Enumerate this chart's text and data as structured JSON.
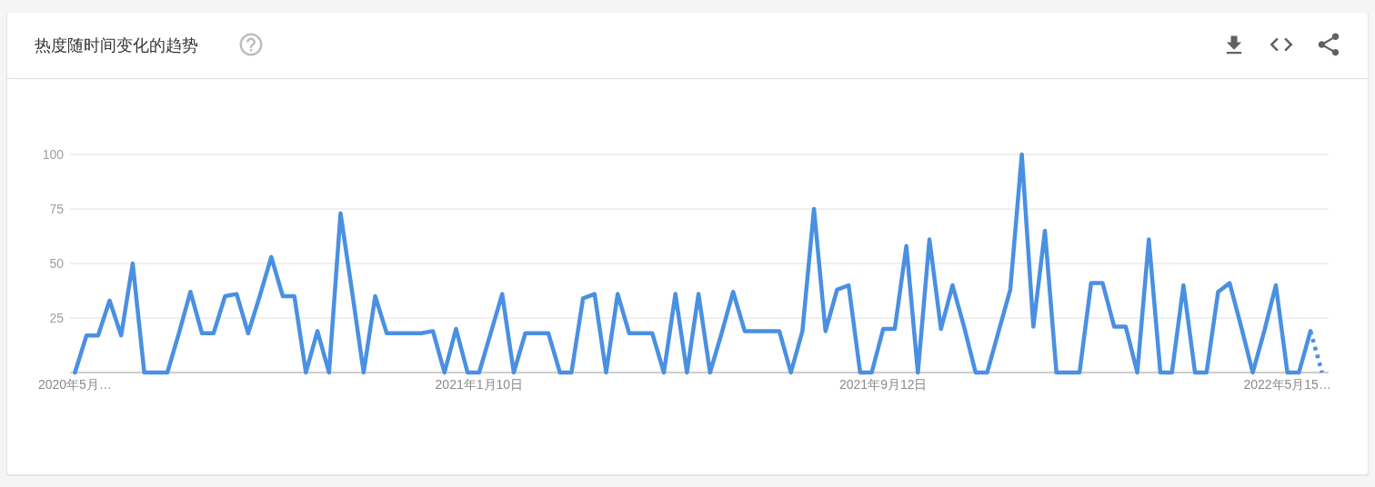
{
  "chart_data": {
    "type": "line",
    "title": "热度随时间变化的趋势",
    "x": [
      "2020-05-10",
      "2020-05-17",
      "2020-05-24",
      "2020-05-31",
      "2020-06-07",
      "2020-06-14",
      "2020-06-21",
      "2020-06-28",
      "2020-07-05",
      "2020-07-12",
      "2020-07-19",
      "2020-07-26",
      "2020-08-02",
      "2020-08-09",
      "2020-08-16",
      "2020-08-23",
      "2020-08-30",
      "2020-09-06",
      "2020-09-13",
      "2020-09-20",
      "2020-09-27",
      "2020-10-04",
      "2020-10-11",
      "2020-10-18",
      "2020-10-25",
      "2020-11-01",
      "2020-11-08",
      "2020-11-15",
      "2020-11-22",
      "2020-11-29",
      "2020-12-06",
      "2020-12-13",
      "2020-12-20",
      "2020-12-27",
      "2021-01-03",
      "2021-01-10",
      "2021-01-17",
      "2021-01-24",
      "2021-01-31",
      "2021-02-07",
      "2021-02-14",
      "2021-02-21",
      "2021-02-28",
      "2021-03-07",
      "2021-03-14",
      "2021-03-21",
      "2021-03-28",
      "2021-04-04",
      "2021-04-11",
      "2021-04-18",
      "2021-04-25",
      "2021-05-02",
      "2021-05-09",
      "2021-05-16",
      "2021-05-23",
      "2021-05-30",
      "2021-06-06",
      "2021-06-13",
      "2021-06-20",
      "2021-06-27",
      "2021-07-04",
      "2021-07-11",
      "2021-07-18",
      "2021-07-25",
      "2021-08-01",
      "2021-08-08",
      "2021-08-15",
      "2021-08-22",
      "2021-08-29",
      "2021-09-05",
      "2021-09-12",
      "2021-09-19",
      "2021-09-26",
      "2021-10-03",
      "2021-10-10",
      "2021-10-17",
      "2021-10-24",
      "2021-10-31",
      "2021-11-07",
      "2021-11-14",
      "2021-11-21",
      "2021-11-28",
      "2021-12-05",
      "2021-12-12",
      "2021-12-19",
      "2021-12-26",
      "2022-01-02",
      "2022-01-09",
      "2022-01-16",
      "2022-01-23",
      "2022-01-30",
      "2022-02-06",
      "2022-02-13",
      "2022-02-20",
      "2022-02-27",
      "2022-03-06",
      "2022-03-13",
      "2022-03-20",
      "2022-03-27",
      "2022-04-03",
      "2022-04-10",
      "2022-04-17",
      "2022-04-24",
      "2022-05-01",
      "2022-05-08",
      "2022-05-15",
      "2022-05-22",
      "2022-05-29",
      "2022-06-05"
    ],
    "series": [
      {
        "color": "#4a90e2",
        "line_style": "solid",
        "values": [
          0,
          17,
          17,
          33,
          17,
          50,
          0,
          0,
          0,
          18,
          37,
          18,
          18,
          35,
          36,
          18,
          35,
          53,
          35,
          35,
          0,
          19,
          0,
          73,
          37,
          0,
          35,
          18,
          18,
          18,
          18,
          19,
          0,
          20,
          0,
          0,
          18,
          36,
          0,
          18,
          18,
          18,
          0,
          0,
          34,
          36,
          0,
          36,
          18,
          18,
          18,
          0,
          36,
          0,
          36,
          0,
          18,
          37,
          19,
          19,
          19,
          19,
          0,
          19,
          75,
          19,
          38,
          40,
          0,
          0,
          20,
          20,
          58,
          0,
          61,
          20,
          40,
          21,
          0,
          0,
          19,
          38,
          100,
          21,
          65,
          0,
          0,
          0,
          41,
          41,
          21,
          21,
          0,
          61,
          0,
          0,
          40,
          0,
          0,
          37,
          41,
          21,
          0,
          19,
          40,
          0,
          0,
          19,
          null
        ]
      },
      {
        "color": "#4a90e2",
        "line_style": "dotted",
        "values": [
          null,
          null,
          null,
          null,
          null,
          null,
          null,
          null,
          null,
          null,
          null,
          null,
          null,
          null,
          null,
          null,
          null,
          null,
          null,
          null,
          null,
          null,
          null,
          null,
          null,
          null,
          null,
          null,
          null,
          null,
          null,
          null,
          null,
          null,
          null,
          null,
          null,
          null,
          null,
          null,
          null,
          null,
          null,
          null,
          null,
          null,
          null,
          null,
          null,
          null,
          null,
          null,
          null,
          null,
          null,
          null,
          null,
          null,
          null,
          null,
          null,
          null,
          null,
          null,
          null,
          null,
          null,
          null,
          null,
          null,
          null,
          null,
          null,
          null,
          null,
          null,
          null,
          null,
          null,
          null,
          null,
          null,
          null,
          null,
          null,
          null,
          null,
          null,
          null,
          null,
          null,
          null,
          null,
          null,
          null,
          null,
          null,
          null,
          null,
          null,
          null,
          null,
          null,
          null,
          null,
          null,
          null,
          19,
          0
        ]
      }
    ],
    "xlim": [
      "2020-05-07",
      "2022-06-09"
    ],
    "xticks": [
      {
        "value": "2020-05-10",
        "label": "2020年5月…"
      },
      {
        "value": "2021-01-10",
        "label": "2021年1月10日"
      },
      {
        "value": "2021-09-12",
        "label": "2021年9月12日"
      },
      {
        "value": "2022-05-15",
        "label": "2022年5月15…"
      }
    ],
    "ylim": [
      0,
      100
    ],
    "yticks": [
      25,
      50,
      75,
      100
    ],
    "grid": "y"
  }
}
